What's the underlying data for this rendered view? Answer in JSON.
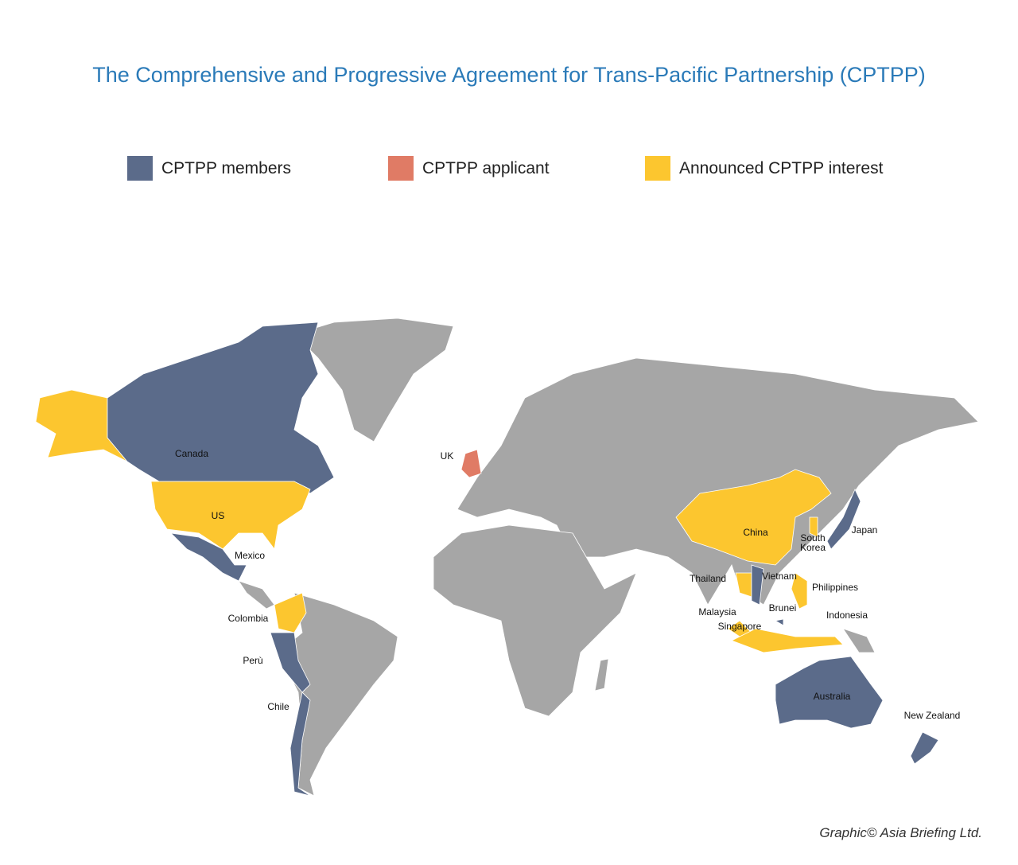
{
  "title": "The Comprehensive and Progressive Agreement for Trans-Pacific Partnership (CPTPP)",
  "legend": [
    {
      "label": "CPTPP members",
      "color": "#5b6b8a"
    },
    {
      "label": "CPTPP applicant",
      "color": "#e07b65"
    },
    {
      "label": "Announced CPTPP interest",
      "color": "#fcc62f"
    }
  ],
  "land_color": "#a6a6a6",
  "labels": [
    "Canada",
    "US",
    "Mexico",
    "Colombia",
    "Perù",
    "Chile",
    "UK",
    "China",
    "South Korea",
    "Japan",
    "Thailand",
    "Vietnam",
    "Philippines",
    "Malaysia",
    "Brunei",
    "Indonesia",
    "Singapore",
    "Australia",
    "New Zealand"
  ],
  "credit": "Graphic© Asia Briefing Ltd."
}
